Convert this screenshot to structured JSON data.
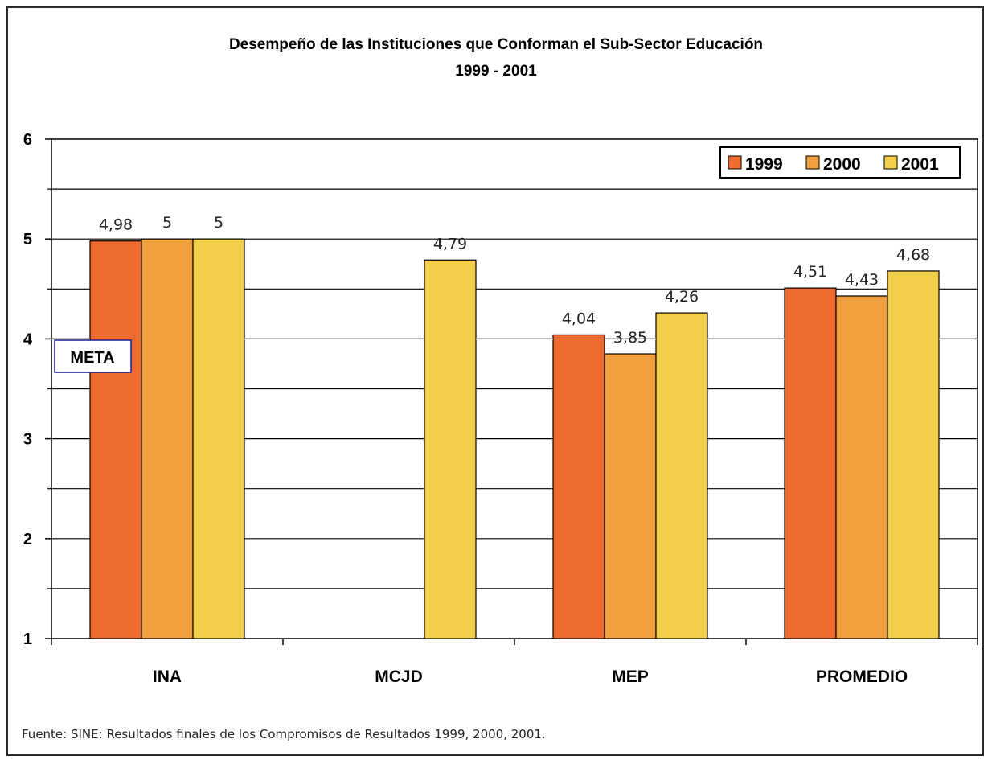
{
  "chart_data": {
    "type": "bar",
    "title": "Desempeño de las Instituciones que Conforman el Sub-Sector Educación",
    "subtitle": "1999 - 2001",
    "categories": [
      "INA",
      "MCJD",
      "MEP",
      "PROMEDIO"
    ],
    "series": [
      {
        "name": "1999",
        "color": "#ec6b2d",
        "values": [
          4.98,
          null,
          4.04,
          4.51
        ],
        "labels": [
          "4,98",
          null,
          "4,04",
          "4,51"
        ]
      },
      {
        "name": "2000",
        "color": "#f0a03c",
        "values": [
          5,
          null,
          3.85,
          4.43
        ],
        "labels": [
          "5",
          null,
          "3,85",
          "4,43"
        ]
      },
      {
        "name": "2001",
        "color": "#f5cf4a",
        "values": [
          5,
          4.79,
          4.26,
          4.68
        ],
        "labels": [
          "5",
          "4,79",
          "4,26",
          "4,68"
        ]
      }
    ],
    "ylim": [
      1,
      6
    ],
    "yticks": [
      1,
      2,
      3,
      4,
      5,
      6
    ],
    "grid": true,
    "legend": "top-right",
    "annotation": "META",
    "source": "Fuente: SINE: Resultados finales de los Compromisos de Resultados 1999, 2000, 2001."
  }
}
